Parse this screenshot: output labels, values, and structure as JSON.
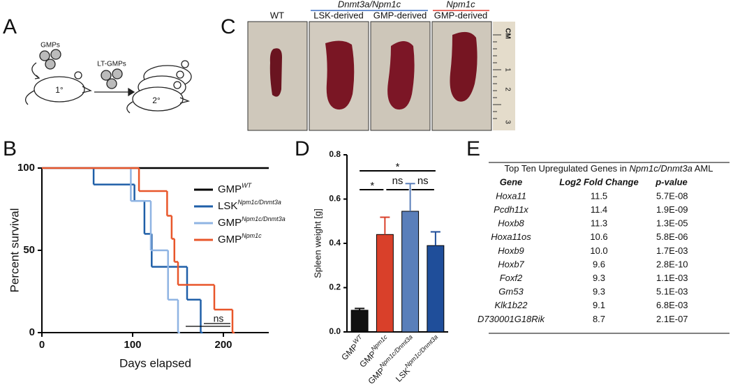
{
  "panels": [
    "A",
    "B",
    "C",
    "D",
    "E"
  ],
  "diagram": {
    "cells_1": "GMPs",
    "cells_2": "LT-GMPs",
    "primary": "1°",
    "secondary": "2°"
  },
  "photos": {
    "headers": [
      "WT",
      "LSK-derived",
      "GMP-derived",
      "GMP-derived"
    ],
    "groups": [
      "Dnmt3a/Npm1c",
      "Npm1c"
    ],
    "ruler": [
      "CM",
      "1",
      "2",
      "3"
    ]
  },
  "chart_data": [
    {
      "type": "line",
      "step": true,
      "y_label": "Percent survival",
      "x_label": "Days elapsed",
      "xlim": [
        0,
        250
      ],
      "ylim": [
        0,
        100
      ],
      "xticks": [
        0,
        100,
        200
      ],
      "yticks": [
        0,
        50,
        100
      ],
      "annotation": "ns",
      "legend": "right",
      "series": [
        {
          "name": "GMP",
          "superscript": "WT",
          "color": "#000000",
          "x": [
            0,
            250
          ],
          "values": [
            100,
            100
          ]
        },
        {
          "name": "LSK",
          "superscript": "Npm1c/Dnmt3a",
          "color": "#1f5fa8",
          "x": [
            0,
            57,
            102,
            113,
            121,
            160,
            175
          ],
          "values": [
            100,
            90,
            80,
            60,
            40,
            20,
            0
          ]
        },
        {
          "name": "GMP",
          "superscript": "Npm1c/Dnmt3a",
          "color": "#8fb4e3",
          "x": [
            0,
            98,
            120,
            139,
            150
          ],
          "values": [
            100,
            80,
            50,
            20,
            0
          ]
        },
        {
          "name": "GMP",
          "superscript": "Npm1c",
          "color": "#e8562a",
          "x": [
            0,
            107,
            138,
            143,
            146,
            150,
            190,
            210
          ],
          "values": [
            100,
            86,
            71,
            57,
            43,
            29,
            14,
            0
          ]
        }
      ]
    },
    {
      "type": "bar",
      "y_label": "Spleen weight [g]",
      "categories": [
        "GMP",
        "GMP",
        "GMP",
        "LSK"
      ],
      "category_superscripts": [
        "WT",
        "Npm1c",
        "Npm1c/Dnmt3a",
        "Npm1c/Dnmt3a"
      ],
      "values": [
        0.098,
        0.44,
        0.545,
        0.39
      ],
      "errors": [
        0.008,
        0.078,
        0.125,
        0.062
      ],
      "colors": [
        "#111111",
        "#d9402a",
        "#5a7fba",
        "#1f4e9a"
      ],
      "ylim": [
        0,
        0.8
      ],
      "yticks": [
        {
          "value": 0,
          "label": "0.0"
        },
        0.2,
        0.4,
        0.6,
        0.8
      ],
      "significance_labels": [
        "*",
        "*",
        "ns",
        "ns"
      ]
    }
  ],
  "table": {
    "title": [
      "Top Ten Upregulated Genes in ",
      "Npm1c/Dnmt3a",
      " AML"
    ],
    "header": [
      "Gene",
      "Log2 Fold Change",
      "p-value"
    ],
    "rows": [
      [
        "Hoxa11",
        "11.5",
        "5.7E-08"
      ],
      [
        "Pcdh11x",
        "11.4",
        "1.9E-09"
      ],
      [
        "Hoxb8",
        "11.3",
        "1.3E-05"
      ],
      [
        "Hoxa11os",
        "10.6",
        "5.8E-06"
      ],
      [
        "Hoxb9",
        "10.0",
        "1.7E-03"
      ],
      [
        "Hoxb7",
        "9.6",
        "2.8E-10"
      ],
      [
        "Foxf2",
        "9.3",
        "1.1E-03"
      ],
      [
        "Gm53",
        "9.3",
        "5.1E-03"
      ],
      [
        "Klk1b22",
        "9.1",
        "6.8E-03"
      ],
      [
        "D730001G18Rik",
        "8.7",
        "2.1E-07"
      ]
    ]
  }
}
